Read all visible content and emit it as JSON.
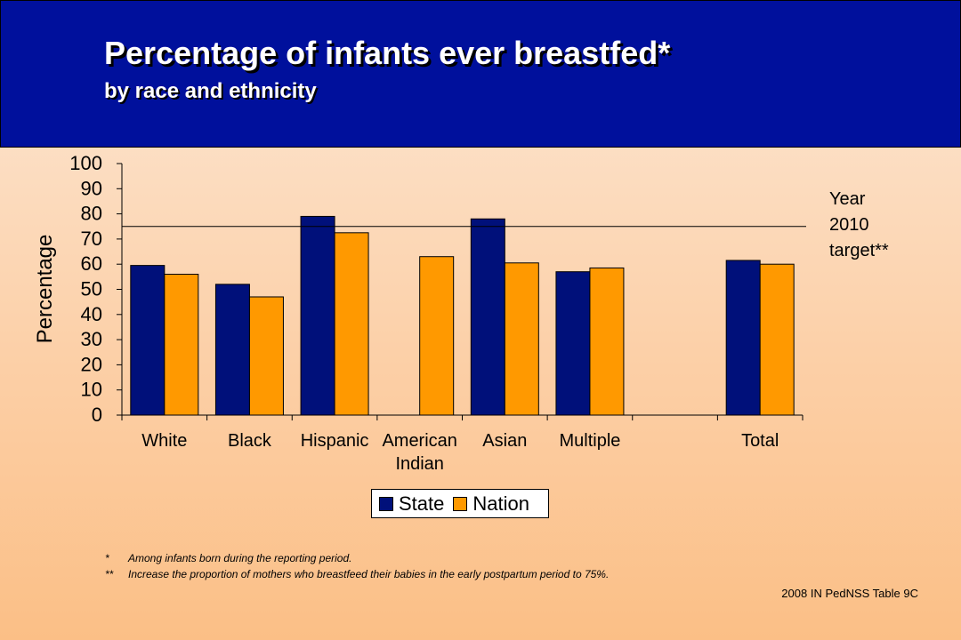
{
  "header": {
    "title": "Percentage of infants ever breastfed*",
    "subtitle": "by race and ethnicity"
  },
  "chart_data": {
    "type": "bar",
    "ylabel": "Percentage",
    "ylim": [
      0,
      100
    ],
    "yticks": [
      0,
      10,
      20,
      30,
      40,
      50,
      60,
      70,
      80,
      90,
      100
    ],
    "categories": [
      "White",
      "Black",
      "Hispanic",
      "American Indian",
      "Asian",
      "Multiple",
      "",
      "Total"
    ],
    "series": [
      {
        "name": "State",
        "color": "#00107a",
        "values": [
          59.5,
          52,
          79,
          0,
          78,
          57,
          0,
          61.5
        ]
      },
      {
        "name": "Nation",
        "color": "#ff9900",
        "values": [
          56,
          47,
          72.5,
          63,
          60.5,
          58.5,
          0,
          60
        ]
      }
    ],
    "target": {
      "value": 75,
      "label_lines": [
        "Year",
        "2010",
        "target**"
      ]
    },
    "legend": {
      "position": "bottom"
    },
    "grid": false
  },
  "footnotes": [
    {
      "mark": "*",
      "text": "Among infants born during the reporting period."
    },
    {
      "mark": "**",
      "text": "Increase the proportion of mothers who breastfeed their babies in the early postpartum period to 75%."
    }
  ],
  "source": "2008 IN PedNSS Table 9C"
}
